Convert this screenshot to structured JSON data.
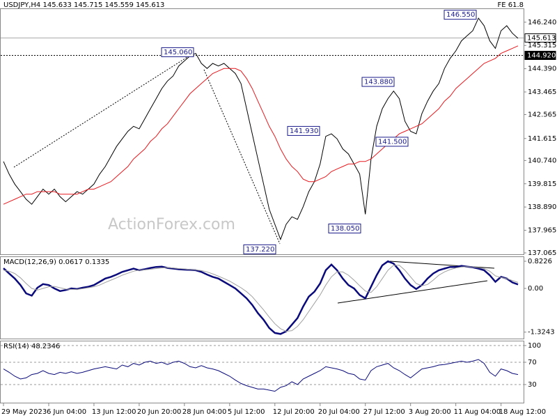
{
  "chart_data": [
    {
      "type": "line",
      "title": "USDJPY,H4  145.633 145.715 145.559 145.613",
      "subtitle": "FE 61.8",
      "watermark": "ActionForex.com",
      "categories": [
        "29 May 2023",
        null,
        null,
        null,
        null,
        null,
        null,
        null,
        "6 Jun 04:00",
        null,
        null,
        null,
        null,
        null,
        null,
        null,
        "13 Jun 12:00",
        null,
        null,
        null,
        null,
        null,
        null,
        null,
        "20 Jun 20:00",
        null,
        null,
        null,
        null,
        null,
        null,
        null,
        "28 Jun 04:00",
        null,
        null,
        null,
        null,
        null,
        null,
        null,
        "5 Jul 12:00",
        null,
        null,
        null,
        null,
        null,
        null,
        null,
        "12 Jul 20:00",
        null,
        null,
        null,
        null,
        null,
        null,
        null,
        "20 Jul 04:00",
        null,
        null,
        null,
        null,
        null,
        null,
        null,
        "27 Jul 12:00",
        null,
        null,
        null,
        null,
        null,
        null,
        null,
        "3 Aug 20:00",
        null,
        null,
        null,
        null,
        null,
        null,
        null,
        "11 Aug 04:00",
        null,
        null,
        null,
        null,
        null,
        null,
        null,
        "18 Aug 12:00",
        null,
        null,
        null
      ],
      "series": [
        {
          "color": "#000000",
          "values": [
            140.7,
            140.2,
            139.8,
            139.5,
            139.2,
            139.0,
            139.3,
            139.6,
            139.4,
            139.6,
            139.3,
            139.1,
            139.3,
            139.5,
            139.4,
            139.6,
            139.8,
            140.2,
            140.5,
            140.9,
            141.3,
            141.6,
            141.9,
            142.1,
            142.0,
            142.4,
            142.8,
            143.2,
            143.6,
            143.9,
            144.1,
            144.5,
            144.7,
            144.9,
            145.0,
            144.6,
            144.4,
            144.6,
            144.5,
            144.6,
            144.4,
            144.2,
            143.8,
            142.8,
            141.8,
            140.8,
            139.8,
            138.8,
            138.2,
            137.6,
            138.2,
            138.5,
            138.4,
            138.9,
            139.5,
            139.9,
            140.6,
            141.7,
            141.8,
            141.6,
            141.2,
            141.0,
            140.6,
            140.2,
            138.6,
            140.8,
            142.1,
            142.8,
            143.2,
            143.5,
            143.2,
            142.3,
            141.9,
            141.8,
            142.6,
            143.1,
            143.5,
            143.8,
            144.4,
            144.8,
            145.1,
            145.5,
            145.7,
            145.9,
            146.4,
            146.1,
            145.5,
            145.2,
            145.9,
            146.1,
            145.8,
            145.6
          ]
        },
        {
          "color": "#e8191e",
          "values": [
            139.0,
            139.1,
            139.2,
            139.3,
            139.4,
            139.4,
            139.5,
            139.5,
            139.5,
            139.5,
            139.4,
            139.4,
            139.4,
            139.4,
            139.5,
            139.6,
            139.6,
            139.7,
            139.8,
            139.9,
            140.1,
            140.3,
            140.5,
            140.8,
            141.0,
            141.2,
            141.5,
            141.7,
            142.0,
            142.2,
            142.5,
            142.8,
            143.1,
            143.4,
            143.6,
            143.8,
            144.0,
            144.2,
            144.3,
            144.4,
            144.4,
            144.4,
            144.3,
            144.0,
            143.6,
            143.1,
            142.6,
            142.1,
            141.7,
            141.2,
            140.8,
            140.5,
            140.3,
            140.0,
            139.9,
            139.9,
            140.0,
            140.1,
            140.3,
            140.4,
            140.5,
            140.6,
            140.6,
            140.7,
            140.7,
            140.8,
            141.0,
            141.2,
            141.4,
            141.6,
            141.8,
            141.9,
            142.0,
            142.1,
            142.2,
            142.4,
            142.6,
            142.8,
            143.1,
            143.3,
            143.6,
            143.8,
            144.0,
            144.2,
            144.4,
            144.6,
            144.7,
            144.8,
            145.0,
            145.1,
            145.2,
            145.3
          ]
        }
      ],
      "ylim": [
        137.01,
        146.79
      ],
      "yticks": [
        {
          "value": 146.24,
          "label": "146.240"
        },
        {
          "value": 145.315,
          "label": "145.315"
        },
        {
          "value": 144.39,
          "label": "144.390"
        },
        {
          "value": 143.465,
          "label": "143.465"
        },
        {
          "value": 142.565,
          "label": "142.565"
        },
        {
          "value": 141.615,
          "label": "141.615"
        },
        {
          "value": 140.74,
          "label": "140.740"
        },
        {
          "value": 139.815,
          "label": "139.815"
        },
        {
          "value": 138.89,
          "label": "138.890"
        },
        {
          "value": 137.965,
          "label": "137.965"
        },
        {
          "value": 137.065,
          "label": "137.065"
        }
      ],
      "markers": [
        {
          "value": 145.613,
          "label": "145.613"
        },
        {
          "value": 144.92,
          "label": "144.920"
        }
      ],
      "annotations": [
        {
          "value": 145.06,
          "label": "145.060"
        },
        {
          "value": 146.55,
          "label": "146.550"
        },
        {
          "value": 143.88,
          "label": "143.880"
        },
        {
          "value": 141.93,
          "label": "141.930"
        },
        {
          "value": 141.5,
          "label": "141.500"
        },
        {
          "value": 138.05,
          "label": "138.050"
        },
        {
          "value": 137.22,
          "label": "137.220"
        }
      ],
      "grid": false
    },
    {
      "type": "line",
      "title": "MACD(12,26,9) 0.0617 0.1335",
      "series": [
        {
          "color": "#0a0a7a",
          "values": [
            0.61,
            0.45,
            0.3,
            0.1,
            -0.15,
            -0.22,
            0.02,
            0.13,
            0.1,
            0.0,
            -0.08,
            -0.05,
            0.0,
            -0.02,
            0.02,
            0.05,
            0.1,
            0.2,
            0.3,
            0.35,
            0.42,
            0.5,
            0.55,
            0.6,
            0.55,
            0.58,
            0.62,
            0.65,
            0.66,
            0.62,
            0.6,
            0.58,
            0.57,
            0.56,
            0.55,
            0.5,
            0.42,
            0.35,
            0.3,
            0.2,
            0.1,
            0.0,
            -0.15,
            -0.3,
            -0.5,
            -0.75,
            -0.95,
            -1.2,
            -1.35,
            -1.38,
            -1.3,
            -1.1,
            -0.9,
            -0.55,
            -0.25,
            -0.1,
            0.15,
            0.55,
            0.72,
            0.55,
            0.3,
            0.1,
            0.0,
            -0.2,
            -0.3,
            0.05,
            0.4,
            0.7,
            0.82,
            0.75,
            0.55,
            0.3,
            0.1,
            -0.02,
            0.1,
            0.3,
            0.45,
            0.55,
            0.6,
            0.65,
            0.65,
            0.68,
            0.66,
            0.64,
            0.6,
            0.55,
            0.4,
            0.2,
            0.35,
            0.3,
            0.18,
            0.12
          ]
        },
        {
          "color": "#a0a0a0",
          "values": [
            0.55,
            0.52,
            0.45,
            0.32,
            0.15,
            0.0,
            -0.05,
            0.0,
            0.05,
            0.06,
            0.02,
            -0.02,
            -0.03,
            -0.03,
            -0.01,
            0.02,
            0.05,
            0.1,
            0.18,
            0.25,
            0.32,
            0.4,
            0.46,
            0.52,
            0.55,
            0.56,
            0.58,
            0.6,
            0.62,
            0.63,
            0.62,
            0.6,
            0.59,
            0.57,
            0.56,
            0.54,
            0.5,
            0.44,
            0.37,
            0.3,
            0.22,
            0.12,
            0.02,
            -0.1,
            -0.25,
            -0.45,
            -0.65,
            -0.87,
            -1.07,
            -1.22,
            -1.3,
            -1.28,
            -1.15,
            -0.95,
            -0.7,
            -0.45,
            -0.2,
            0.1,
            0.35,
            0.5,
            0.5,
            0.4,
            0.25,
            0.08,
            -0.08,
            -0.12,
            0.05,
            0.3,
            0.55,
            0.7,
            0.7,
            0.55,
            0.35,
            0.15,
            0.08,
            0.12,
            0.25,
            0.4,
            0.5,
            0.57,
            0.62,
            0.65,
            0.66,
            0.65,
            0.63,
            0.6,
            0.52,
            0.38,
            0.33,
            0.3,
            0.24,
            0.18
          ]
        }
      ],
      "ylim": [
        -1.52,
        0.97
      ],
      "yticks": [
        0.8226,
        {
          "value": 0,
          "label": "0.00"
        },
        -1.3243
      ],
      "grid": false
    },
    {
      "type": "line",
      "title": "RSI(14) 48.2346",
      "series": [
        {
          "color": "#0a0a7a",
          "values": [
            58,
            52,
            45,
            40,
            42,
            48,
            50,
            55,
            50,
            48,
            52,
            50,
            53,
            50,
            52,
            55,
            58,
            60,
            62,
            60,
            58,
            65,
            62,
            68,
            65,
            70,
            72,
            68,
            70,
            66,
            70,
            72,
            68,
            62,
            60,
            64,
            60,
            58,
            55,
            50,
            45,
            38,
            32,
            28,
            25,
            22,
            22,
            20,
            18,
            25,
            28,
            35,
            30,
            40,
            45,
            50,
            55,
            62,
            60,
            58,
            55,
            50,
            48,
            40,
            38,
            55,
            62,
            65,
            68,
            60,
            55,
            48,
            42,
            50,
            58,
            60,
            62,
            65,
            66,
            68,
            70,
            72,
            70,
            72,
            75,
            68,
            52,
            45,
            58,
            55,
            50,
            48
          ]
        }
      ],
      "ylim": [
        -2.5,
        108.75
      ],
      "yticks": [
        100,
        70,
        30
      ],
      "grid": true
    }
  ]
}
